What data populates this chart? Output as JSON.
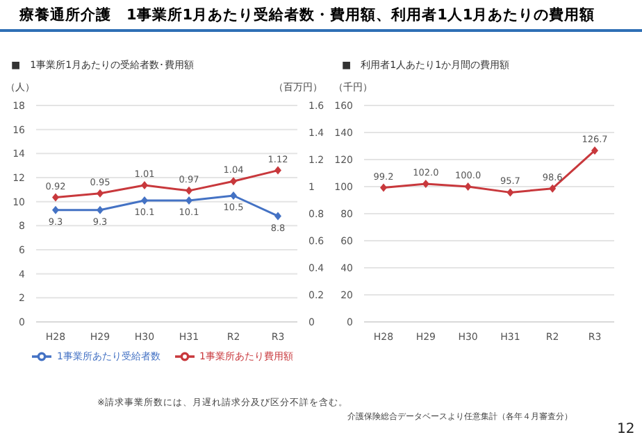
{
  "chart_data": [
    {
      "type": "line",
      "title": "療養通所介護　1事業所1月あたり受給者数・費用額、利用者1人1月あたりの費用額",
      "subtitle": "■　1事業所1月あたりの受給者数･費用額",
      "ylabel": "（人）",
      "y2label": "（百万円）",
      "categories": [
        "H28",
        "H29",
        "H30",
        "H31",
        "R2",
        "R3"
      ],
      "series": [
        {
          "name": "1事業所あたり受給者数",
          "color": "#4472c4",
          "values": [
            9.3,
            9.3,
            10.1,
            10.1,
            10.5,
            8.8
          ]
        },
        {
          "name": "1事業所あたり費用額",
          "color": "#c8383c",
          "axis": "y2",
          "values": [
            0.92,
            0.95,
            1.01,
            0.97,
            1.04,
            1.12
          ]
        }
      ],
      "ylim": [
        0,
        18
      ],
      "yticks": [
        0,
        2,
        4,
        6,
        8,
        10,
        12,
        14,
        16,
        18
      ],
      "y2lim": [
        0,
        1.6
      ],
      "y2ticks": [
        0,
        0.2,
        0.4,
        0.6,
        0.8,
        1,
        1.2,
        1.4,
        1.6
      ],
      "grid": "y",
      "legend": "bottom",
      "marker": "diamond",
      "data_labels": true,
      "annotations": [
        "※請求事業所数には、月遅れ請求分及び区分不詳を含む。"
      ]
    },
    {
      "type": "line",
      "title": "■　利用者1人あたり1か月間の費用額",
      "ylabel": "（千円）",
      "categories": [
        "H28",
        "H29",
        "H30",
        "H31",
        "R2",
        "R3"
      ],
      "series": [
        {
          "color": "#c8383c",
          "values": [
            99.2,
            102.0,
            100.0,
            95.7,
            98.6,
            126.7
          ],
          "value_labels": [
            "99.2",
            "102.0",
            "100.0",
            "95.7",
            "98.6",
            "126.7"
          ]
        }
      ],
      "ylim": [
        0,
        160
      ],
      "yticks": [
        0,
        20,
        40,
        60,
        80,
        100,
        120,
        140,
        160
      ],
      "grid": "y",
      "marker": "diamond",
      "annotations": [
        "介護保険総合データベースより任意集計（各年４月審査分）",
        "12"
      ]
    }
  ]
}
